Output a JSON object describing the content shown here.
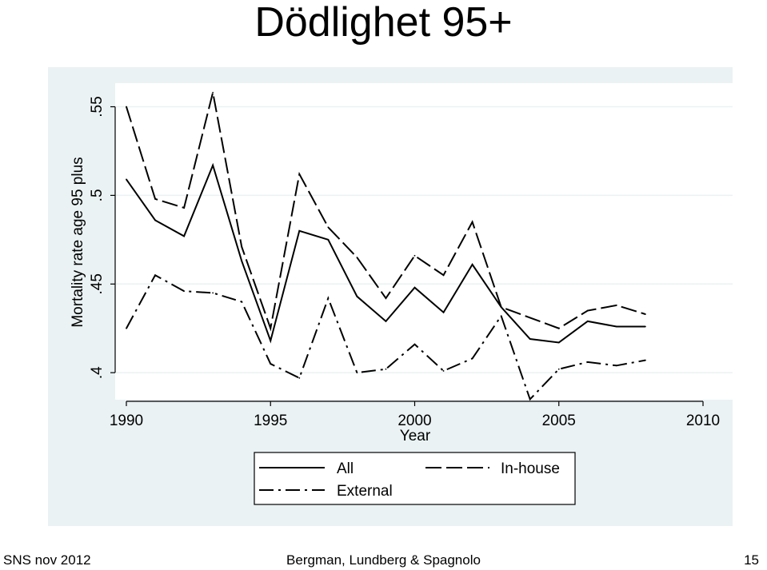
{
  "slide": {
    "title": "Dödlighet 95+",
    "footer_left": "SNS nov 2012",
    "footer_center": "Bergman, Lundberg & Spagnolo",
    "footer_right": "15"
  },
  "colors": {
    "plot_background": "#eaf2f3",
    "inner_background": "#ffffff",
    "grid": "#eaf2f3",
    "line": "#000000"
  },
  "chart_data": {
    "type": "line",
    "title": "",
    "xlabel": "Year",
    "ylabel": "Mortality rate age 95 plus",
    "xlim": [
      1990,
      2010
    ],
    "ylim": [
      0.387,
      0.557
    ],
    "xticks": [
      1990,
      1995,
      2000,
      2005,
      2010
    ],
    "xtick_labels": [
      "1990",
      "1995",
      "2000",
      "2005",
      "2010"
    ],
    "yticks": [
      0.4,
      0.45,
      0.5,
      0.55
    ],
    "ytick_labels": [
      ".4",
      ".45",
      ".5",
      ".55"
    ],
    "grid": true,
    "legend": {
      "placement": "bottom",
      "columns": 2
    },
    "x": [
      1990,
      1991,
      1992,
      1993,
      1994,
      1995,
      1996,
      1997,
      1998,
      1999,
      2000,
      2001,
      2002,
      2003,
      2004,
      2005,
      2006,
      2007,
      2008
    ],
    "series": [
      {
        "name": "All",
        "style": "solid",
        "values": [
          0.509,
          0.486,
          0.477,
          0.517,
          0.463,
          0.418,
          0.48,
          0.475,
          0.443,
          0.429,
          0.448,
          0.434,
          0.461,
          0.437,
          0.419,
          0.417,
          0.429,
          0.426,
          0.426
        ]
      },
      {
        "name": "In-house",
        "style": "dash",
        "values": [
          0.55,
          0.498,
          0.493,
          0.558,
          0.471,
          0.425,
          0.512,
          0.482,
          0.465,
          0.442,
          0.466,
          0.455,
          0.485,
          0.437,
          0.431,
          0.425,
          0.435,
          0.438,
          0.433
        ]
      },
      {
        "name": "External",
        "style": "dashdot",
        "values": [
          0.425,
          0.455,
          0.446,
          0.445,
          0.44,
          0.405,
          0.397,
          0.442,
          0.4,
          0.402,
          0.416,
          0.401,
          0.408,
          0.432,
          0.385,
          0.402,
          0.406,
          0.404,
          0.407
        ]
      }
    ]
  }
}
